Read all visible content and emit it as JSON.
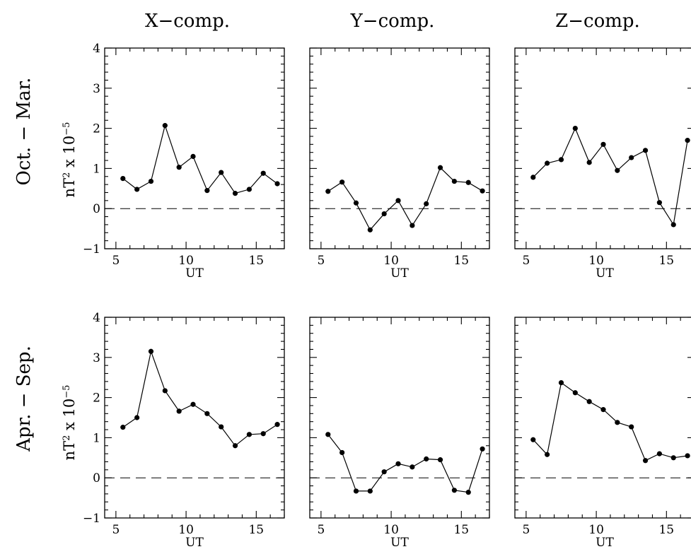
{
  "column_titles": [
    "X−comp.",
    "Y−comp.",
    "Z−comp."
  ],
  "row_titles": [
    "Oct.  −  Mar.",
    "Apr.  −  Sep."
  ],
  "ylabel_base": "nT",
  "ylabel_mid": " x 10",
  "ylabel_sup1": "2",
  "ylabel_sup2": "−5",
  "chart_data": [
    {
      "type": "line",
      "row": "Oct.  −  Mar.",
      "column": "X−comp.",
      "xlabel": "UT",
      "ylabel": "nT² x 10⁻⁵",
      "xlim": [
        4.2,
        17.0
      ],
      "ylim": [
        -1,
        4
      ],
      "xticks": [
        5,
        10,
        15
      ],
      "yticks": [
        -1,
        0,
        1,
        2,
        3,
        4
      ],
      "reference_line": 0,
      "x": [
        5.5,
        6.5,
        7.5,
        8.5,
        9.5,
        10.5,
        11.5,
        12.5,
        13.5,
        14.5,
        15.5,
        16.5
      ],
      "y": [
        0.75,
        0.48,
        0.68,
        2.07,
        1.03,
        1.3,
        0.45,
        0.9,
        0.38,
        0.48,
        0.88,
        0.62
      ]
    },
    {
      "type": "line",
      "row": "Oct.  −  Mar.",
      "column": "Y−comp.",
      "xlabel": "UT",
      "ylabel": "nT² x 10⁻⁵",
      "xlim": [
        4.2,
        17.0
      ],
      "ylim": [
        -1,
        4
      ],
      "xticks": [
        5,
        10,
        15
      ],
      "yticks": [
        -1,
        0,
        1,
        2,
        3,
        4
      ],
      "reference_line": 0,
      "x": [
        5.5,
        6.5,
        7.5,
        8.5,
        9.5,
        10.5,
        11.5,
        12.5,
        13.5,
        14.5,
        15.5,
        16.5
      ],
      "y": [
        0.43,
        0.66,
        0.14,
        -0.53,
        -0.13,
        0.2,
        -0.42,
        0.12,
        1.02,
        0.68,
        0.65,
        0.44
      ]
    },
    {
      "type": "line",
      "row": "Oct.  −  Mar.",
      "column": "Z−comp.",
      "xlabel": "UT",
      "ylabel": "nT² x 10⁻⁵",
      "xlim": [
        4.2,
        17.0
      ],
      "ylim": [
        -1,
        4
      ],
      "xticks": [
        5,
        10,
        15
      ],
      "yticks": [
        -1,
        0,
        1,
        2,
        3,
        4
      ],
      "reference_line": 0,
      "x": [
        5.5,
        6.5,
        7.5,
        8.5,
        9.5,
        10.5,
        11.5,
        12.5,
        13.5,
        14.5,
        15.5,
        16.5
      ],
      "y": [
        0.78,
        1.13,
        1.22,
        2.0,
        1.15,
        1.6,
        0.95,
        1.27,
        1.45,
        0.15,
        -0.4,
        1.7
      ]
    },
    {
      "type": "line",
      "row": "Apr.  −  Sep.",
      "column": "X−comp.",
      "xlabel": "UT",
      "ylabel": "nT² x 10⁻⁵",
      "xlim": [
        4.2,
        17.0
      ],
      "ylim": [
        -1,
        4
      ],
      "xticks": [
        5,
        10,
        15
      ],
      "yticks": [
        -1,
        0,
        1,
        2,
        3,
        4
      ],
      "reference_line": 0,
      "x": [
        5.5,
        6.5,
        7.5,
        8.5,
        9.5,
        10.5,
        11.5,
        12.5,
        13.5,
        14.5,
        15.5,
        16.5
      ],
      "y": [
        1.26,
        1.5,
        3.15,
        2.17,
        1.66,
        1.83,
        1.6,
        1.27,
        0.8,
        1.08,
        1.1,
        1.33
      ]
    },
    {
      "type": "line",
      "row": "Apr.  −  Sep.",
      "column": "Y−comp.",
      "xlabel": "UT",
      "ylabel": "nT² x 10⁻⁵",
      "xlim": [
        4.2,
        17.0
      ],
      "ylim": [
        -1,
        4
      ],
      "xticks": [
        5,
        10,
        15
      ],
      "yticks": [
        -1,
        0,
        1,
        2,
        3,
        4
      ],
      "reference_line": 0,
      "x": [
        5.5,
        6.5,
        7.5,
        8.5,
        9.5,
        10.5,
        11.5,
        12.5,
        13.5,
        14.5,
        15.5,
        16.5
      ],
      "y": [
        1.08,
        0.63,
        -0.33,
        -0.33,
        0.15,
        0.35,
        0.27,
        0.47,
        0.45,
        -0.31,
        -0.36,
        0.72
      ]
    },
    {
      "type": "line",
      "row": "Apr.  −  Sep.",
      "column": "Z−comp.",
      "xlabel": "UT",
      "ylabel": "nT² x 10⁻⁵",
      "xlim": [
        4.2,
        17.0
      ],
      "ylim": [
        -1,
        4
      ],
      "xticks": [
        5,
        10,
        15
      ],
      "yticks": [
        -1,
        0,
        1,
        2,
        3,
        4
      ],
      "reference_line": 0,
      "x": [
        5.5,
        6.5,
        7.5,
        8.5,
        9.5,
        10.5,
        11.5,
        12.5,
        13.5,
        14.5,
        15.5,
        16.5
      ],
      "y": [
        0.95,
        0.58,
        2.37,
        2.12,
        1.9,
        1.7,
        1.38,
        1.27,
        0.43,
        0.6,
        0.5,
        0.55
      ]
    }
  ]
}
